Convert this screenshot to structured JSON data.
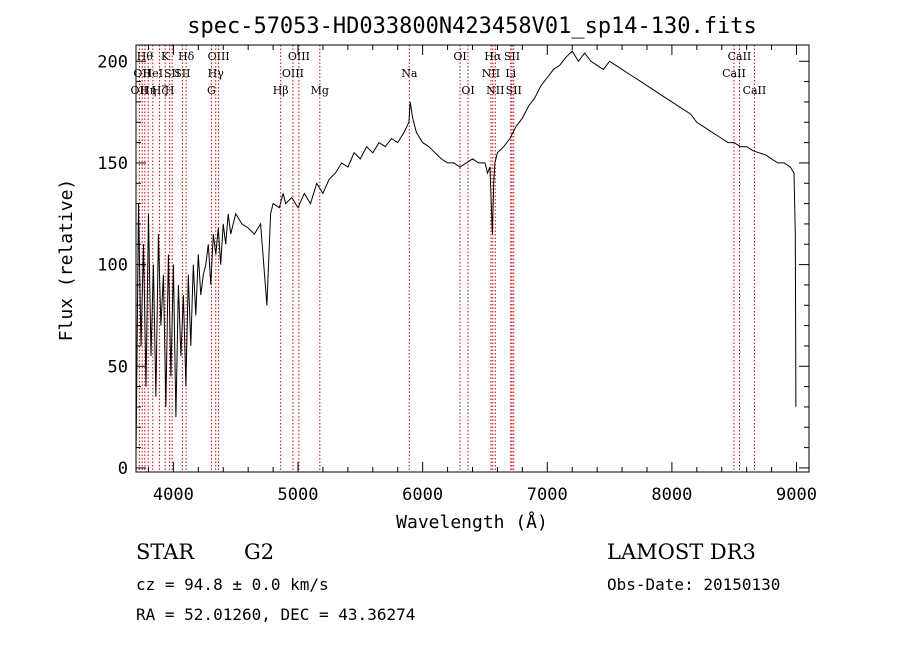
{
  "chart_data": {
    "type": "line",
    "title": "spec-57053-HD033800N423458V01_sp14-130.fits",
    "xlabel": "Wavelength (Å)",
    "ylabel": "Flux (relative)",
    "xlim": [
      3700,
      9100
    ],
    "ylim": [
      -2,
      208
    ],
    "x_ticks": [
      4000,
      5000,
      6000,
      7000,
      8000,
      9000
    ],
    "y_ticks": [
      0,
      50,
      100,
      150,
      200
    ],
    "grid": false,
    "series": [
      {
        "x": [
          3700,
          3720,
          3740,
          3760,
          3780,
          3800,
          3820,
          3840,
          3860,
          3880,
          3900,
          3920,
          3940,
          3960,
          3980,
          4000,
          4020,
          4040,
          4060,
          4080,
          4100,
          4120,
          4140,
          4160,
          4180,
          4200,
          4220,
          4240,
          4260,
          4280,
          4300,
          4320,
          4340,
          4360,
          4380,
          4400,
          4420,
          4440,
          4460,
          4480,
          4500,
          4550,
          4600,
          4650,
          4700,
          4750,
          4780,
          4800,
          4850,
          4880,
          4900,
          4950,
          5000,
          5050,
          5100,
          5150,
          5200,
          5250,
          5300,
          5350,
          5400,
          5450,
          5500,
          5550,
          5600,
          5650,
          5700,
          5750,
          5800,
          5850,
          5890,
          5900,
          5920,
          5950,
          6000,
          6050,
          6100,
          6150,
          6200,
          6250,
          6300,
          6350,
          6400,
          6450,
          6500,
          6520,
          6540,
          6560,
          6570,
          6580,
          6600,
          6650,
          6700,
          6750,
          6800,
          6850,
          6900,
          6950,
          7000,
          7050,
          7100,
          7150,
          7200,
          7250,
          7300,
          7350,
          7400,
          7450,
          7500,
          7550,
          7600,
          7650,
          7700,
          7750,
          7800,
          7850,
          7900,
          7950,
          8000,
          8050,
          8100,
          8150,
          8200,
          8250,
          8300,
          8350,
          8400,
          8450,
          8500,
          8550,
          8600,
          8650,
          8700,
          8750,
          8800,
          8850,
          8900,
          8950,
          8980,
          8990,
          8995
        ],
        "y": [
          5,
          130,
          60,
          110,
          40,
          125,
          55,
          100,
          35,
          115,
          70,
          95,
          30,
          105,
          45,
          100,
          25,
          90,
          55,
          85,
          40,
          95,
          60,
          100,
          75,
          105,
          85,
          95,
          100,
          110,
          90,
          115,
          105,
          118,
          100,
          120,
          110,
          125,
          115,
          120,
          125,
          120,
          118,
          115,
          120,
          80,
          125,
          130,
          128,
          135,
          130,
          133,
          128,
          135,
          130,
          140,
          135,
          142,
          145,
          150,
          148,
          155,
          152,
          158,
          155,
          160,
          158,
          162,
          160,
          165,
          170,
          180,
          172,
          165,
          160,
          158,
          155,
          152,
          150,
          150,
          148,
          150,
          152,
          150,
          150,
          145,
          148,
          115,
          140,
          150,
          155,
          158,
          162,
          168,
          172,
          178,
          182,
          188,
          192,
          196,
          198,
          202,
          205,
          200,
          204,
          200,
          198,
          196,
          200,
          198,
          196,
          194,
          192,
          190,
          188,
          186,
          184,
          182,
          180,
          178,
          176,
          174,
          170,
          168,
          166,
          164,
          162,
          160,
          160,
          158,
          158,
          156,
          155,
          154,
          152,
          150,
          150,
          148,
          145,
          115,
          30
        ]
      }
    ],
    "line_markers": [
      {
        "x": 3727,
        "row": 2,
        "label": "OII"
      },
      {
        "x": 3750,
        "row": 1,
        "label": "OII"
      },
      {
        "x": 3771,
        "row": 0,
        "label": "Hθ"
      },
      {
        "x": 3798,
        "row": 2,
        "label": "Hη"
      },
      {
        "x": 3835,
        "row": 1,
        "label": "HeI"
      },
      {
        "x": 3889,
        "row": 2,
        "label": "Hζ"
      },
      {
        "x": 3934,
        "row": 0,
        "label": "K"
      },
      {
        "x": 3970,
        "row": 2,
        "label": "H"
      },
      {
        "x": 3990,
        "row": 1,
        "label": "SII"
      },
      {
        "x": 4102,
        "row": 0,
        "label": "Hδ"
      },
      {
        "x": 4072,
        "row": 1,
        "label": "SII"
      },
      {
        "x": 4340,
        "row": 1,
        "label": "Hγ"
      },
      {
        "x": 4305,
        "row": 2,
        "label": "G"
      },
      {
        "x": 4363,
        "row": 0,
        "label": "OIII"
      },
      {
        "x": 4861,
        "row": 2,
        "label": "Hβ"
      },
      {
        "x": 4959,
        "row": 1,
        "label": "OIII"
      },
      {
        "x": 5007,
        "row": 0,
        "label": "OIII"
      },
      {
        "x": 5175,
        "row": 2,
        "label": "Mg"
      },
      {
        "x": 5893,
        "row": 1,
        "label": "Na"
      },
      {
        "x": 6300,
        "row": 0,
        "label": "OI"
      },
      {
        "x": 6364,
        "row": 2,
        "label": "OI"
      },
      {
        "x": 6548,
        "row": 1,
        "label": "NII"
      },
      {
        "x": 6563,
        "row": 0,
        "label": "Hα"
      },
      {
        "x": 6583,
        "row": 2,
        "label": "NII"
      },
      {
        "x": 6707,
        "row": 1,
        "label": "Li"
      },
      {
        "x": 6717,
        "row": 0,
        "label": "SII"
      },
      {
        "x": 6731,
        "row": 2,
        "label": "SII"
      },
      {
        "x": 8498,
        "row": 1,
        "label": "CaII"
      },
      {
        "x": 8542,
        "row": 0,
        "label": "CaII"
      },
      {
        "x": 8662,
        "row": 2,
        "label": "CaII"
      }
    ]
  },
  "info": {
    "class_label": "STAR",
    "subclass": "G2",
    "cz": "cz = 94.8 ± 0.0 km/s",
    "coords": "RA =  52.01260, DEC =  43.36274",
    "survey": "LAMOST DR3",
    "obs_date": "Obs-Date: 20150130"
  },
  "colors": {
    "spectrum": "#000000",
    "line_marker": "#cc0000",
    "axes": "#000000",
    "background": "#ffffff"
  }
}
